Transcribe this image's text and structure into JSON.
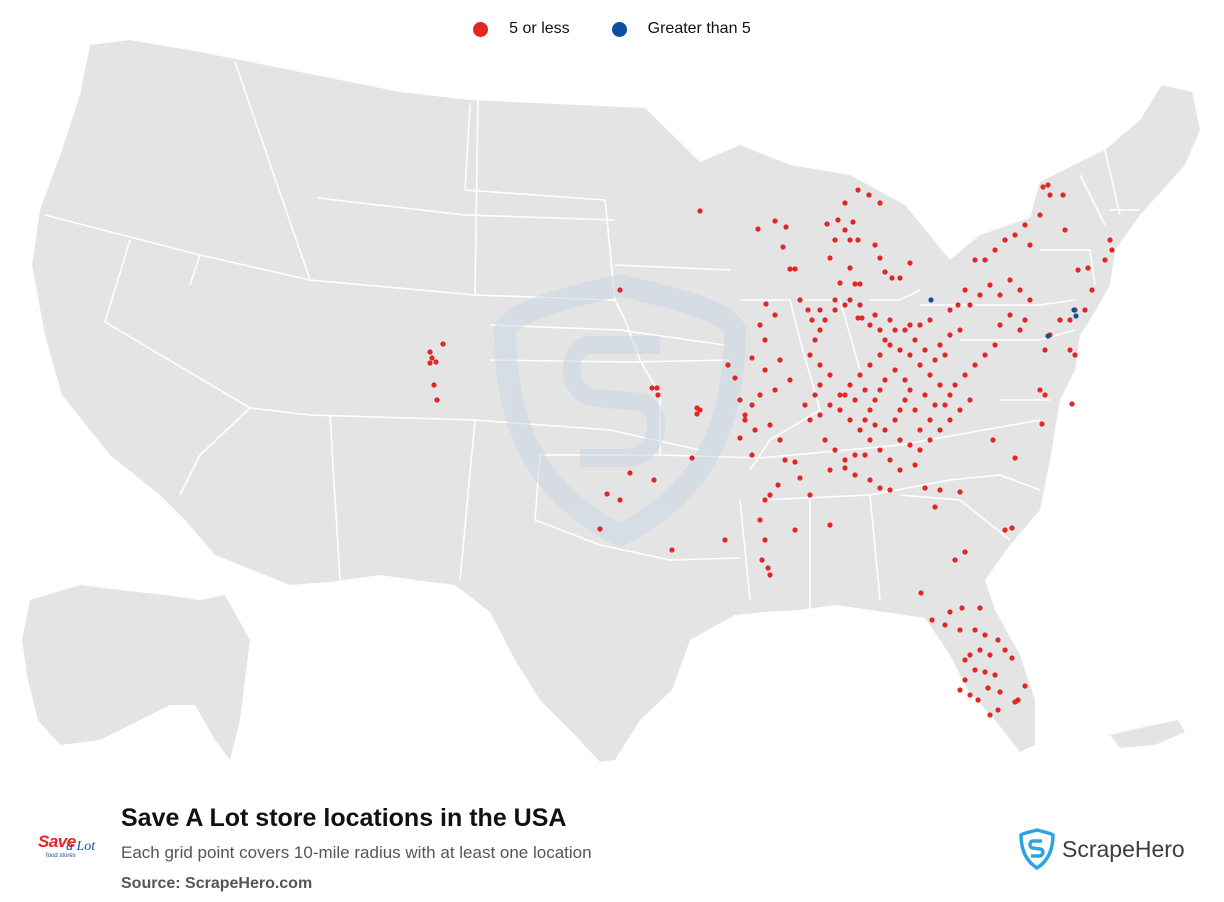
{
  "legend": {
    "items": [
      {
        "label": "5 or less",
        "color": "#e32526"
      },
      {
        "label": "Greater than 5",
        "color": "#0d4fa1"
      }
    ]
  },
  "footer": {
    "title": "Save A Lot store locations in the USA",
    "subtitle": "Each grid point covers 10-mile radius with at least one location",
    "source": "Source: ScrapeHero.com"
  },
  "brand_logo": {
    "main": "Save",
    "script": "a Lot",
    "tagline": "food stores",
    "icon": "save-a-lot-logo"
  },
  "publisher_logo": {
    "name": "ScrapeHero",
    "icon": "scrapehero-shield-logo"
  },
  "colors": {
    "land": "#e4e4e4",
    "border": "#ffffff",
    "watermark": "#c9d7e5",
    "low": "#e32526",
    "high": "#0d4fa1"
  }
}
